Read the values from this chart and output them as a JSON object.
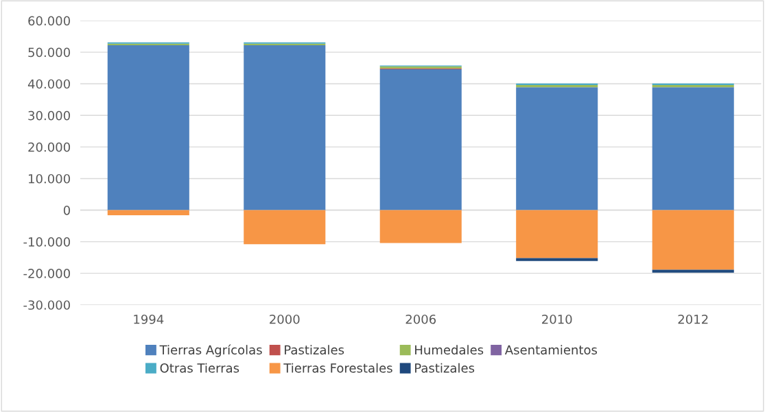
{
  "chart_data": {
    "type": "bar",
    "stacked": true,
    "categories": [
      "1994",
      "2000",
      "2006",
      "2010",
      "2012"
    ],
    "series": [
      {
        "name": "Tierras Agrícolas",
        "color": "#4f81bd",
        "values": [
          52200,
          52200,
          44600,
          38900,
          38900
        ]
      },
      {
        "name": "Pastizales",
        "color": "#c0504d",
        "values": [
          null,
          null,
          300,
          null,
          null
        ]
      },
      {
        "name": "Humedales",
        "color": "#9bbb59",
        "values": [
          500,
          500,
          600,
          700,
          700
        ]
      },
      {
        "name": "Asentamientos",
        "color": "#8064a2",
        "values": [
          null,
          null,
          null,
          null,
          null
        ]
      },
      {
        "name": "Otras Tierras",
        "color": "#4bacc6",
        "values": [
          400,
          400,
          300,
          500,
          500
        ]
      },
      {
        "name": "Tierras Forestales",
        "color": "#f79646",
        "values": [
          -1600,
          -10800,
          -10400,
          -15200,
          -18900
        ]
      },
      {
        "name": "Pastizales",
        "color": "#1f497d",
        "values": [
          null,
          null,
          null,
          -900,
          -900
        ]
      }
    ],
    "ylim": [
      -30000,
      60000
    ],
    "yticks": [
      {
        "value": -30000,
        "label": "-30.000"
      },
      {
        "value": -20000,
        "label": "-20.000"
      },
      {
        "value": -10000,
        "label": "-10.000"
      },
      0,
      {
        "value": 10000,
        "label": "10.000"
      },
      {
        "value": 20000,
        "label": "20.000"
      },
      {
        "value": 30000,
        "label": "30.000"
      },
      {
        "value": 40000,
        "label": "40.000"
      },
      {
        "value": 50000,
        "label": "50.000"
      },
      {
        "value": 60000,
        "label": "60.000"
      }
    ],
    "grid": "y",
    "legend": "bottom"
  }
}
